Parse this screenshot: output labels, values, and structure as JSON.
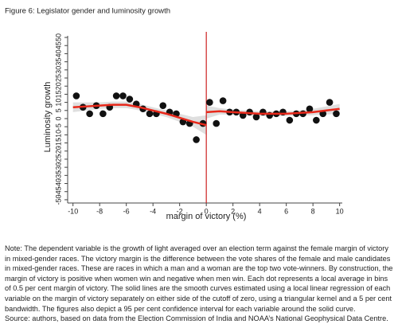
{
  "chart_data": {
    "type": "scatter",
    "title": "Figure 6: Legislator gender and luminosity growth",
    "xlabel": "margin of victory (%)",
    "ylabel": "Luminosity growth",
    "xlim": [
      -10.4,
      10.2
    ],
    "ylim": [
      -52,
      51
    ],
    "xticks": [
      -10,
      -8,
      -6,
      -4,
      -2,
      0,
      2,
      4,
      6,
      8,
      10
    ],
    "yticks": [
      50,
      45,
      40,
      35,
      30,
      25,
      20,
      15,
      10,
      5,
      0,
      -5,
      -10,
      -15,
      -20,
      -25,
      -30,
      -35,
      -40,
      -45,
      -50
    ],
    "vline": 0,
    "vline_color": "#cc1f1f",
    "series": [
      {
        "color": "#111111",
        "x": [
          -9.75,
          -9.25,
          -8.75,
          -8.25,
          -7.75,
          -7.25,
          -6.75,
          -6.25,
          -5.75,
          -5.25,
          -4.75,
          -4.25,
          -3.75,
          -3.25,
          -2.75,
          -2.25,
          -1.75,
          -1.25,
          -0.75,
          -0.25
        ],
        "values": [
          14,
          7,
          3,
          8,
          3,
          7,
          14,
          14,
          12,
          9,
          6,
          3,
          3,
          8,
          4,
          3,
          -2,
          -3,
          -13,
          -3
        ]
      },
      {
        "color": "#111111",
        "x": [
          0.25,
          0.75,
          1.25,
          1.75,
          2.25,
          2.75,
          3.25,
          3.75,
          4.25,
          4.75,
          5.25,
          5.75,
          6.25,
          6.75,
          7.25,
          7.75,
          8.25,
          8.75,
          9.25,
          9.75
        ],
        "values": [
          10,
          -3,
          11,
          4,
          4,
          2,
          4,
          1,
          4,
          2,
          3,
          4,
          -1,
          3,
          3,
          6,
          -1,
          3,
          10,
          3
        ]
      }
    ],
    "fits": [
      {
        "color": "#e8281a",
        "band_color": "#d9d9d9",
        "x": [
          -10,
          -9,
          -8,
          -7,
          -6,
          -5,
          -4,
          -3,
          -2,
          -1,
          0
        ],
        "values": [
          7,
          7.5,
          8,
          8.5,
          8.5,
          7,
          5,
          3,
          0.5,
          -2,
          -4
        ],
        "lower": [
          4,
          5,
          6,
          6.5,
          6.5,
          5,
          3,
          1,
          -2,
          -5,
          -10
        ],
        "upper": [
          10,
          10,
          10,
          10.5,
          10.5,
          9,
          7,
          5,
          3,
          1,
          2
        ]
      },
      {
        "color": "#e8281a",
        "band_color": "#d9d9d9",
        "x": [
          0,
          1,
          2,
          3,
          4,
          5,
          6,
          7,
          8,
          9,
          10
        ],
        "values": [
          4,
          4.5,
          4,
          3.5,
          3,
          3,
          3,
          3.5,
          4,
          5,
          6
        ],
        "lower": [
          0,
          2.5,
          2.5,
          2,
          1.5,
          1.5,
          1.5,
          2,
          2,
          2.5,
          3
        ],
        "upper": [
          8,
          6.5,
          5.5,
          5,
          4.5,
          4.5,
          4.5,
          5,
          6,
          7.5,
          9
        ]
      }
    ]
  },
  "note": "Note: The dependent variable is the growth of light averaged over an election term against the female margin of victory in mixed-gender races. The victory margin is the difference between the vote shares of the female and male candidates in mixed-gender races. These are races in which a man and a woman are the top two vote-winners. By construction, the margin of victory is positive when women win and negative when men win. Each dot represents a local average in bins of 0.5 per cent margin of victory. The solid lines are the smooth curves estimated using a local linear regression of each variable on the margin of victory separately on either side of the cutoff of zero, using a triangular kernel and a 5 per cent bandwidth. The figures also depict a 95 per cent confidence interval for each variable around the solid curve.",
  "source": "Source: authors, based on data from the Election Commission of India and NOAA’s National Geophysical Data Centre."
}
